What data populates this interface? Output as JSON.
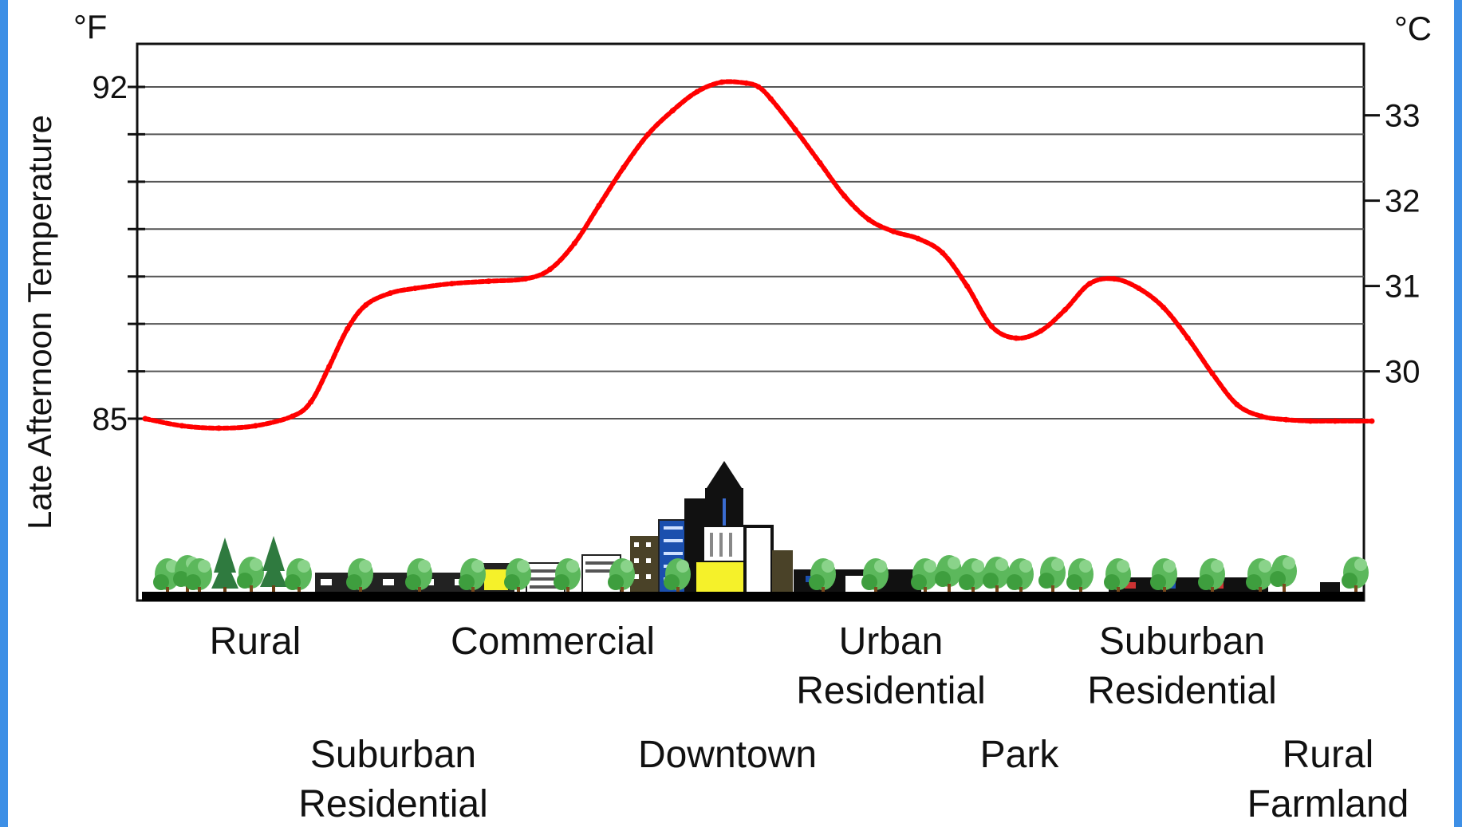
{
  "chart_data": {
    "type": "line",
    "ylabel": "Late Afternoon Temperature",
    "y_unit_left": "°F",
    "y_unit_right": "°C",
    "yticks_left": [
      85,
      92
    ],
    "yticks_right": [
      30,
      31,
      32,
      33
    ],
    "ylim_f": [
      84.05,
      92.95
    ],
    "gridline_step_f": 1,
    "grid": true,
    "zones": [
      {
        "label": "Rural",
        "row": 1
      },
      {
        "label": "Suburban\nResidential",
        "row": 2
      },
      {
        "label": "Commercial",
        "row": 1
      },
      {
        "label": "Downtown",
        "row": 2
      },
      {
        "label": "Urban\nResidential",
        "row": 1
      },
      {
        "label": "Park",
        "row": 2
      },
      {
        "label": "Suburban\nResidential",
        "row": 1
      },
      {
        "label": "Rural\nFarmland",
        "row": 2
      }
    ],
    "series": [
      {
        "color": "#ff0000",
        "style": "dotted",
        "x": [
          0.0,
          0.03,
          0.06,
          0.09,
          0.12,
          0.135,
          0.15,
          0.165,
          0.18,
          0.2,
          0.22,
          0.25,
          0.28,
          0.31,
          0.33,
          0.35,
          0.37,
          0.39,
          0.41,
          0.43,
          0.45,
          0.47,
          0.49,
          0.5,
          0.51,
          0.53,
          0.55,
          0.57,
          0.59,
          0.61,
          0.63,
          0.65,
          0.67,
          0.69,
          0.71,
          0.73,
          0.75,
          0.77,
          0.79,
          0.81,
          0.83,
          0.85,
          0.87,
          0.89,
          0.91,
          0.93,
          0.95,
          0.97,
          1.0
        ],
        "y": [
          85.0,
          84.85,
          84.8,
          84.85,
          85.05,
          85.35,
          86.1,
          86.9,
          87.4,
          87.65,
          87.75,
          87.85,
          87.9,
          87.95,
          88.15,
          88.7,
          89.5,
          90.3,
          91.0,
          91.5,
          91.9,
          92.1,
          92.08,
          92.0,
          91.75,
          91.1,
          90.4,
          89.7,
          89.2,
          88.95,
          88.8,
          88.5,
          87.8,
          86.95,
          86.7,
          86.85,
          87.3,
          87.85,
          87.95,
          87.75,
          87.35,
          86.7,
          85.95,
          85.3,
          85.05,
          84.98,
          84.95,
          84.95,
          84.95
        ]
      }
    ]
  }
}
